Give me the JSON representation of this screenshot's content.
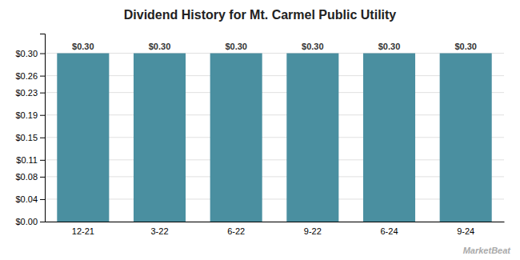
{
  "chart_data": {
    "type": "bar",
    "title": "Dividend History for Mt. Carmel Public Utility",
    "categories": [
      "12-21",
      "3-22",
      "6-22",
      "9-22",
      "6-24",
      "9-24"
    ],
    "values": [
      0.3,
      0.3,
      0.3,
      0.3,
      0.3,
      0.3
    ],
    "value_labels": [
      "$0.30",
      "$0.30",
      "$0.30",
      "$0.30",
      "$0.30",
      "$0.30"
    ],
    "data_labels": true,
    "color": "#4a8fa0",
    "ylim": [
      0,
      0.335
    ],
    "yticks": [
      {
        "value": 0.0,
        "label": "$0.00"
      },
      {
        "value": 0.04,
        "label": "$0.04"
      },
      {
        "value": 0.08,
        "label": "$0.08"
      },
      {
        "value": 0.11,
        "label": "$0.11"
      },
      {
        "value": 0.15,
        "label": "$0.15"
      },
      {
        "value": 0.19,
        "label": "$0.19"
      },
      {
        "value": 0.23,
        "label": "$0.23"
      },
      {
        "value": 0.26,
        "label": "$0.26"
      },
      {
        "value": 0.3,
        "label": "$0.30"
      }
    ],
    "grid": true,
    "annotations": [
      "MarketBeat"
    ]
  }
}
